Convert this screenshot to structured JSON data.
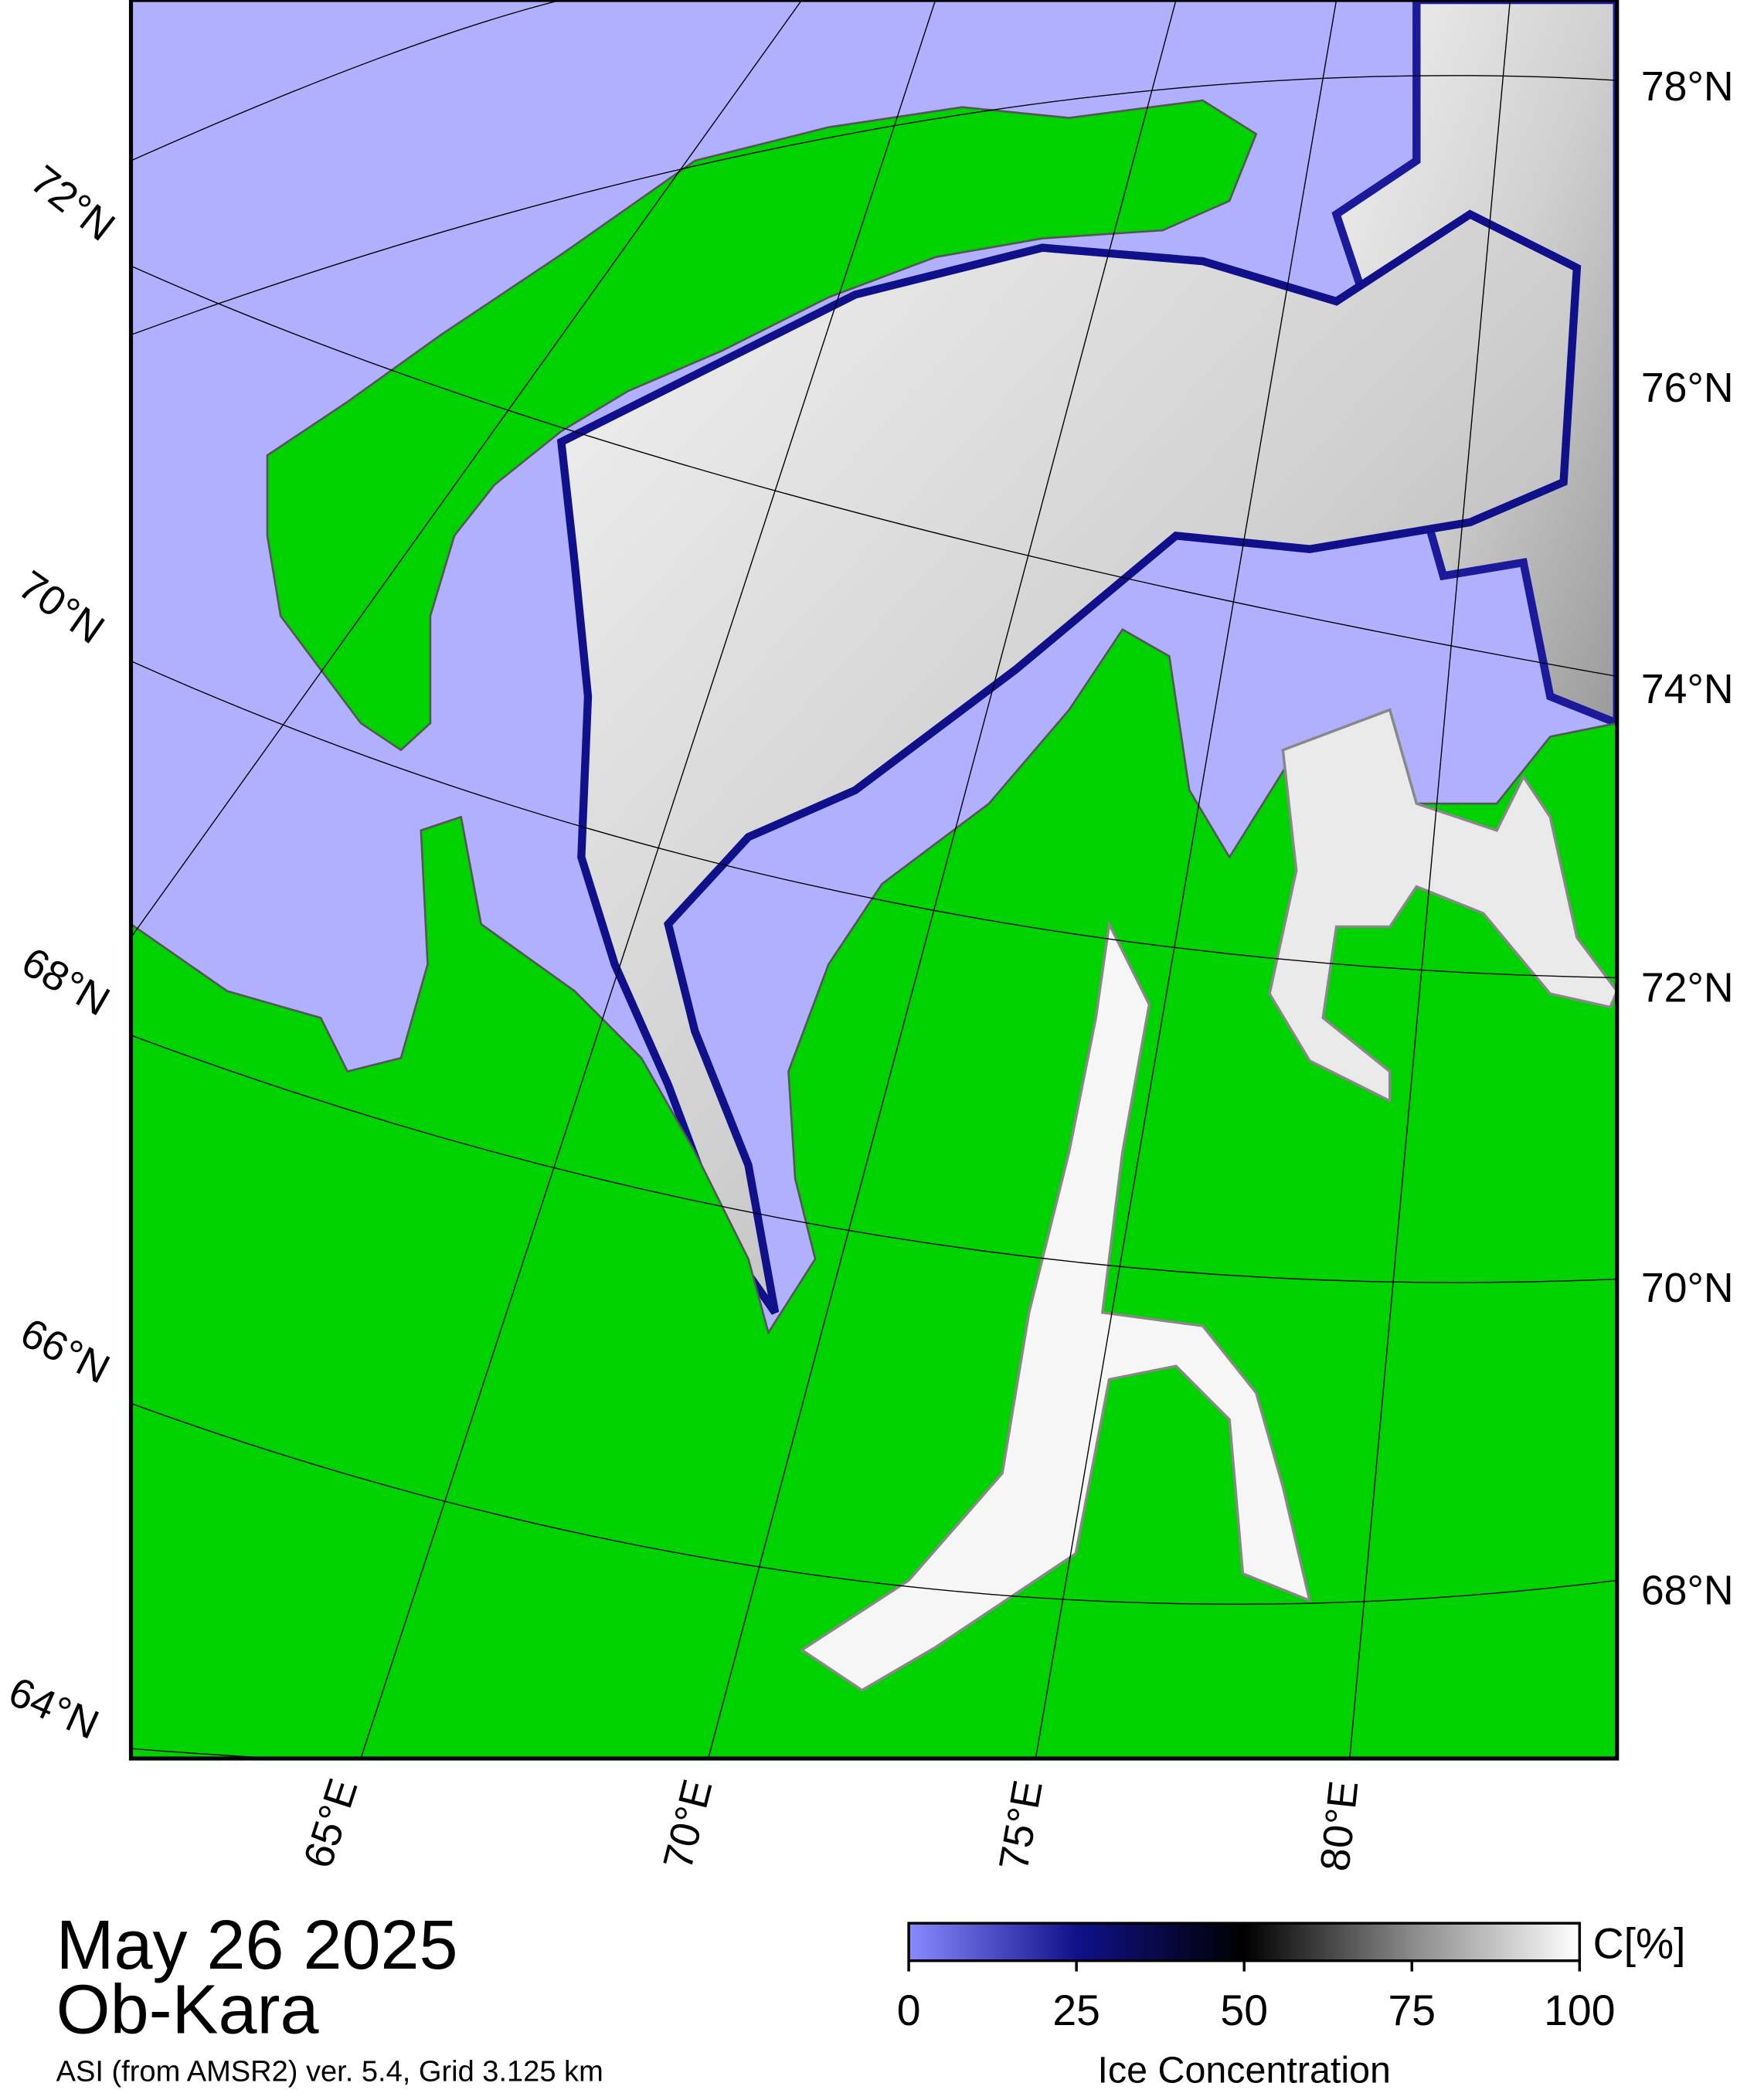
{
  "map": {
    "lat_labels_left": [
      "72°N",
      "70°N",
      "68°N",
      "66°N",
      "64°N"
    ],
    "lat_labels_right": [
      "78°N",
      "76°N",
      "74°N",
      "72°N",
      "70°N",
      "68°N"
    ],
    "lon_labels": [
      "65°E",
      "70°E",
      "75°E",
      "80°E"
    ]
  },
  "caption": {
    "date": "May 26 2025",
    "region": "Ob-Kara",
    "source": "ASI (from AMSR2) ver. 5.4,  Grid 3.125 km"
  },
  "colorbar": {
    "range": [
      0,
      100
    ],
    "ticks": [
      0,
      25,
      50,
      75,
      100
    ],
    "unit": "C[%]",
    "label": "Ice Concentration"
  }
}
